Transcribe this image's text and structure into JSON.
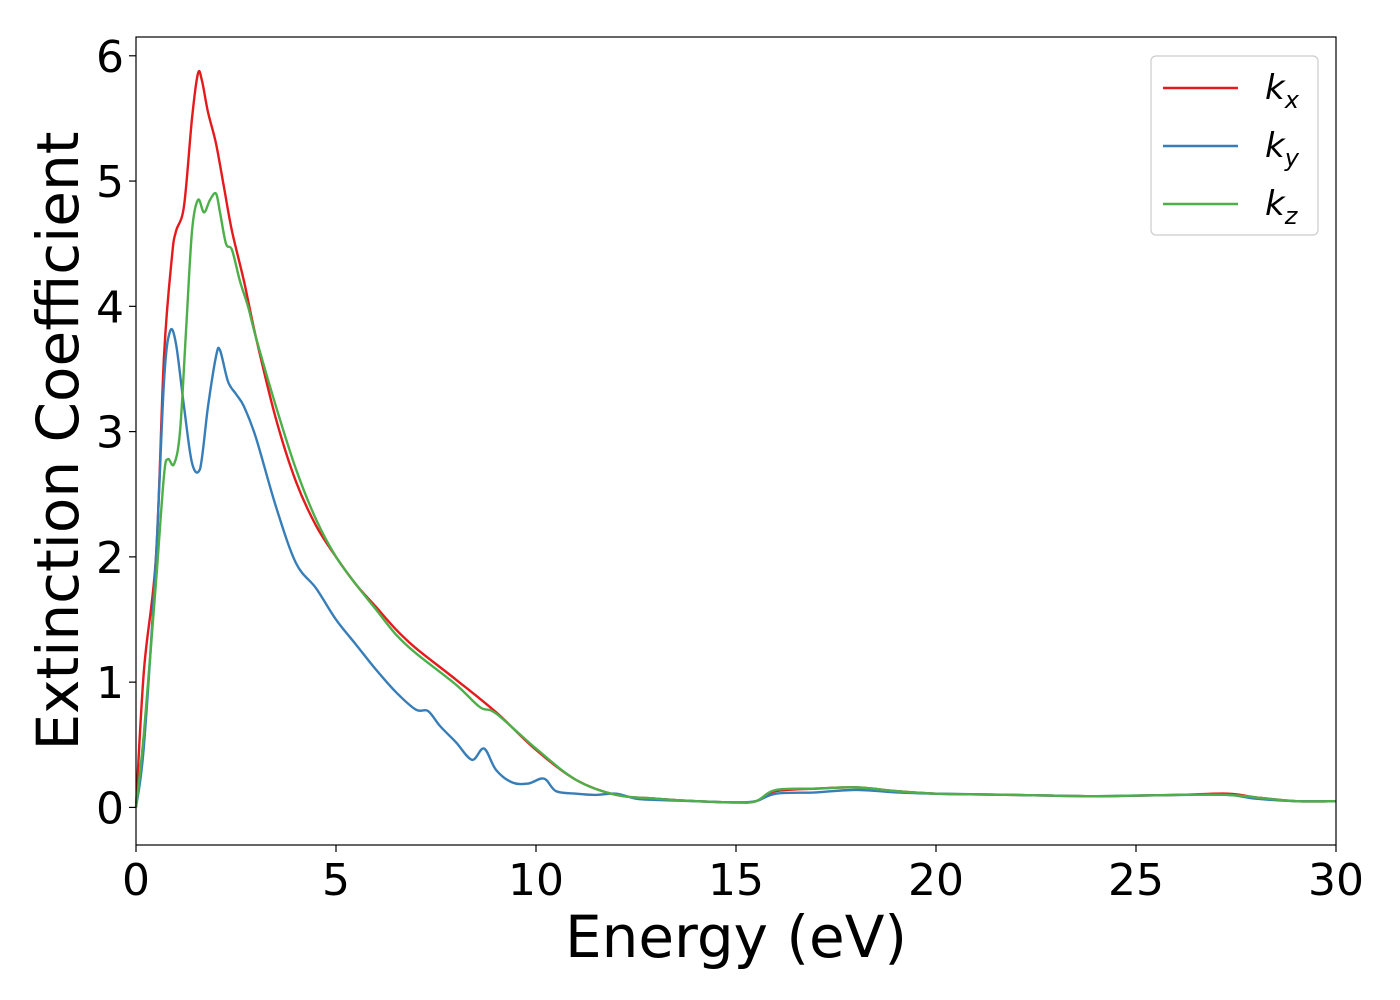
{
  "chart_data": {
    "type": "line",
    "title": "",
    "xlabel": "Energy (eV)",
    "ylabel": "Extinction Coefficient",
    "xlim": [
      0,
      30
    ],
    "ylim": [
      -0.3,
      6.15
    ],
    "xticks": [
      0,
      5,
      10,
      15,
      20,
      25,
      30
    ],
    "yticks": [
      0,
      1,
      2,
      3,
      4,
      5,
      6
    ],
    "grid": false,
    "legend_position": "top-right",
    "series": [
      {
        "name": "k",
        "subscript": "x",
        "color": "#e41a1c",
        "x": [
          0,
          0.2,
          0.5,
          0.7,
          0.9,
          1.0,
          1.2,
          1.4,
          1.55,
          1.65,
          1.8,
          2.0,
          2.2,
          2.4,
          2.7,
          3.0,
          3.5,
          4.0,
          4.5,
          5.0,
          5.5,
          6.0,
          6.5,
          7.0,
          8.0,
          9.0,
          10.0,
          11.0,
          12.0,
          13.0,
          14.0,
          15.0,
          15.5,
          16.0,
          17.0,
          18.0,
          19.0,
          20.0,
          22.0,
          24.0,
          26.0,
          27.3,
          28.0,
          29.0,
          30.0
        ],
        "y": [
          0.0,
          1.1,
          2.0,
          3.6,
          4.4,
          4.6,
          4.8,
          5.5,
          5.86,
          5.8,
          5.55,
          5.3,
          4.95,
          4.6,
          4.2,
          3.75,
          3.1,
          2.6,
          2.25,
          2.0,
          1.78,
          1.6,
          1.42,
          1.27,
          1.02,
          0.76,
          0.46,
          0.22,
          0.1,
          0.07,
          0.05,
          0.04,
          0.05,
          0.13,
          0.15,
          0.16,
          0.13,
          0.11,
          0.1,
          0.09,
          0.1,
          0.11,
          0.08,
          0.05,
          0.05
        ]
      },
      {
        "name": "k",
        "subscript": "y",
        "color": "#377eb8",
        "x": [
          0,
          0.2,
          0.5,
          0.7,
          0.85,
          1.0,
          1.2,
          1.4,
          1.6,
          1.8,
          2.0,
          2.1,
          2.3,
          2.5,
          2.7,
          3.0,
          3.5,
          4.0,
          4.5,
          5.0,
          5.5,
          6.0,
          6.5,
          7.0,
          7.3,
          7.6,
          8.0,
          8.4,
          8.7,
          9.0,
          9.4,
          9.8,
          10.2,
          10.5,
          11.0,
          11.5,
          12.0,
          12.5,
          13.0,
          14.0,
          15.0,
          15.5,
          16.0,
          17.0,
          18.0,
          19.0,
          20.0,
          22.0,
          24.0,
          26.0,
          27.3,
          28.0,
          29.0,
          30.0
        ],
        "y": [
          0.0,
          0.5,
          2.0,
          3.4,
          3.8,
          3.7,
          3.2,
          2.75,
          2.7,
          3.2,
          3.6,
          3.65,
          3.4,
          3.3,
          3.2,
          2.95,
          2.4,
          1.95,
          1.75,
          1.5,
          1.3,
          1.1,
          0.92,
          0.78,
          0.77,
          0.65,
          0.52,
          0.38,
          0.47,
          0.3,
          0.2,
          0.19,
          0.23,
          0.13,
          0.11,
          0.1,
          0.11,
          0.07,
          0.06,
          0.05,
          0.04,
          0.05,
          0.11,
          0.12,
          0.14,
          0.12,
          0.11,
          0.1,
          0.09,
          0.1,
          0.1,
          0.07,
          0.05,
          0.05
        ]
      },
      {
        "name": "k",
        "subscript": "z",
        "color": "#4daf4a",
        "x": [
          0,
          0.2,
          0.5,
          0.7,
          0.8,
          0.95,
          1.1,
          1.25,
          1.4,
          1.55,
          1.7,
          1.85,
          2.0,
          2.1,
          2.25,
          2.4,
          2.6,
          2.8,
          3.0,
          3.5,
          4.0,
          4.5,
          5.0,
          5.5,
          6.0,
          6.5,
          7.0,
          8.0,
          8.6,
          9.0,
          10.0,
          11.0,
          12.0,
          13.0,
          14.0,
          15.0,
          15.5,
          16.0,
          17.0,
          18.0,
          19.0,
          20.0,
          22.0,
          24.0,
          26.0,
          27.3,
          28.0,
          29.0,
          30.0
        ],
        "y": [
          0.0,
          0.6,
          1.8,
          2.65,
          2.78,
          2.74,
          3.0,
          3.8,
          4.6,
          4.85,
          4.75,
          4.85,
          4.9,
          4.75,
          4.5,
          4.45,
          4.2,
          4.0,
          3.75,
          3.2,
          2.7,
          2.3,
          2.0,
          1.78,
          1.58,
          1.38,
          1.23,
          0.98,
          0.8,
          0.75,
          0.47,
          0.22,
          0.1,
          0.07,
          0.05,
          0.04,
          0.05,
          0.14,
          0.15,
          0.16,
          0.13,
          0.11,
          0.1,
          0.09,
          0.1,
          0.1,
          0.08,
          0.05,
          0.05
        ]
      }
    ]
  }
}
